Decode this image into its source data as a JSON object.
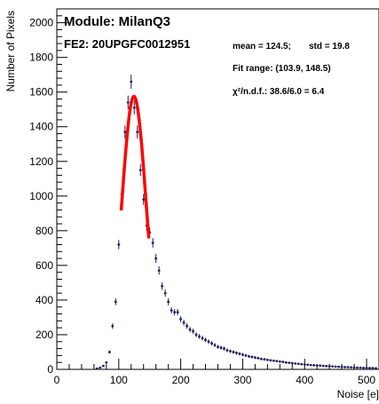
{
  "chart_data": {
    "type": "scatter",
    "title": "Module: MilanQ3",
    "subtitle": "FE2: 20UPGFC0012951",
    "xlabel": "Noise [e]",
    "ylabel": "Number of Pixels",
    "xlim": [
      0,
      520
    ],
    "ylim": [
      0,
      2080
    ],
    "x_ticks": [
      0,
      100,
      200,
      300,
      400,
      500
    ],
    "y_ticks": [
      0,
      200,
      400,
      600,
      800,
      1000,
      1200,
      1400,
      1600,
      1800,
      2000
    ],
    "grid": false,
    "stats": {
      "mean_text": "mean = 124.5;",
      "std_text": "std = 19.8",
      "fit_range_text": "Fit range: (103.9, 148.5)",
      "chi2_text": "χ²/n.d.f.: 38.6/6.0 = 6.4"
    },
    "fit": {
      "function": "gaussian",
      "mean": 124.5,
      "sigma": 19.8,
      "peak": 1575,
      "range": [
        103.9,
        148.5
      ],
      "color": "#ff0000"
    },
    "marker_color": "#1c1c5c",
    "series": [
      {
        "x": [
          65,
          70,
          75,
          80,
          85,
          90,
          95,
          100,
          105,
          110,
          115,
          120,
          125,
          130,
          135,
          140,
          145,
          150,
          155,
          160,
          165,
          170,
          175,
          180,
          185,
          190,
          195,
          200,
          205,
          210,
          215,
          220,
          225,
          230,
          235,
          240,
          245,
          250,
          255,
          260,
          265,
          270,
          275,
          280,
          285,
          290,
          295,
          300,
          305,
          310,
          315,
          320,
          325,
          330,
          335,
          340,
          345,
          350,
          355,
          360,
          365,
          370,
          375,
          380,
          385,
          390,
          395,
          400,
          405,
          410,
          415,
          420,
          425,
          430,
          435,
          440,
          445,
          450,
          455,
          460,
          465,
          470,
          475,
          480,
          485,
          490,
          495,
          500,
          505,
          510,
          515
        ],
        "y": [
          5,
          10,
          20,
          40,
          100,
          250,
          390,
          720,
          1010,
          1370,
          1540,
          1660,
          1510,
          1370,
          1150,
          980,
          830,
          790,
          730,
          640,
          570,
          480,
          440,
          390,
          340,
          330,
          330,
          290,
          270,
          250,
          230,
          220,
          200,
          190,
          180,
          170,
          160,
          150,
          140,
          130,
          125,
          120,
          110,
          105,
          100,
          95,
          90,
          85,
          80,
          75,
          72,
          68,
          65,
          60,
          58,
          55,
          52,
          50,
          48,
          45,
          43,
          40,
          38,
          36,
          34,
          32,
          30,
          28,
          27,
          25,
          24,
          23,
          22,
          20,
          19,
          18,
          17,
          16,
          15,
          14,
          13,
          13,
          12,
          11,
          10,
          10,
          9,
          9,
          8,
          8,
          7
        ]
      }
    ]
  }
}
